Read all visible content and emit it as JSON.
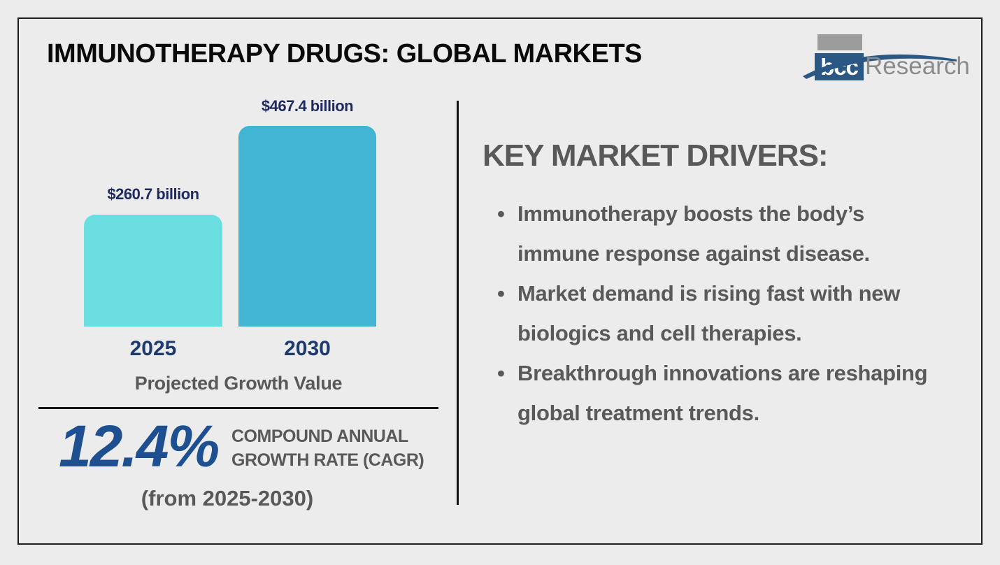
{
  "page": {
    "title": "IMMUNOTHERAPY DRUGS: GLOBAL MARKETS"
  },
  "logo": {
    "bcc": "bcc",
    "research": "Research",
    "blue": "#2b5784",
    "square_gray": "#9c9c9c",
    "text_gray": "#8b8b8b"
  },
  "chart_data": {
    "type": "bar",
    "title": "Projected Growth Value",
    "categories": [
      "2025",
      "2030"
    ],
    "values": [
      260.7,
      467.4
    ],
    "unit": "USD billions",
    "value_labels": [
      "$260.7 billion",
      "$467.4 billion"
    ],
    "bar_colors": [
      "#6adfe2",
      "#41b5d3"
    ],
    "value_label_color": "#1f2a5e",
    "ylim": [
      0,
      467.4
    ],
    "grid": false,
    "legend": "none"
  },
  "cagr": {
    "value": "12.4%",
    "label_line1": "COMPOUND ANNUAL",
    "label_line2": "GROWTH RATE (CAGR)",
    "period": "(from 2025-2030)",
    "value_color": "#1d4f91"
  },
  "drivers": {
    "heading": "KEY MARKET DRIVERS:",
    "bullets": [
      "Immunotherapy boosts the body’s immune response against disease.",
      "Market demand is rising fast with new biologics and cell therapies.",
      "Breakthrough innovations are reshaping global treatment trends."
    ]
  }
}
